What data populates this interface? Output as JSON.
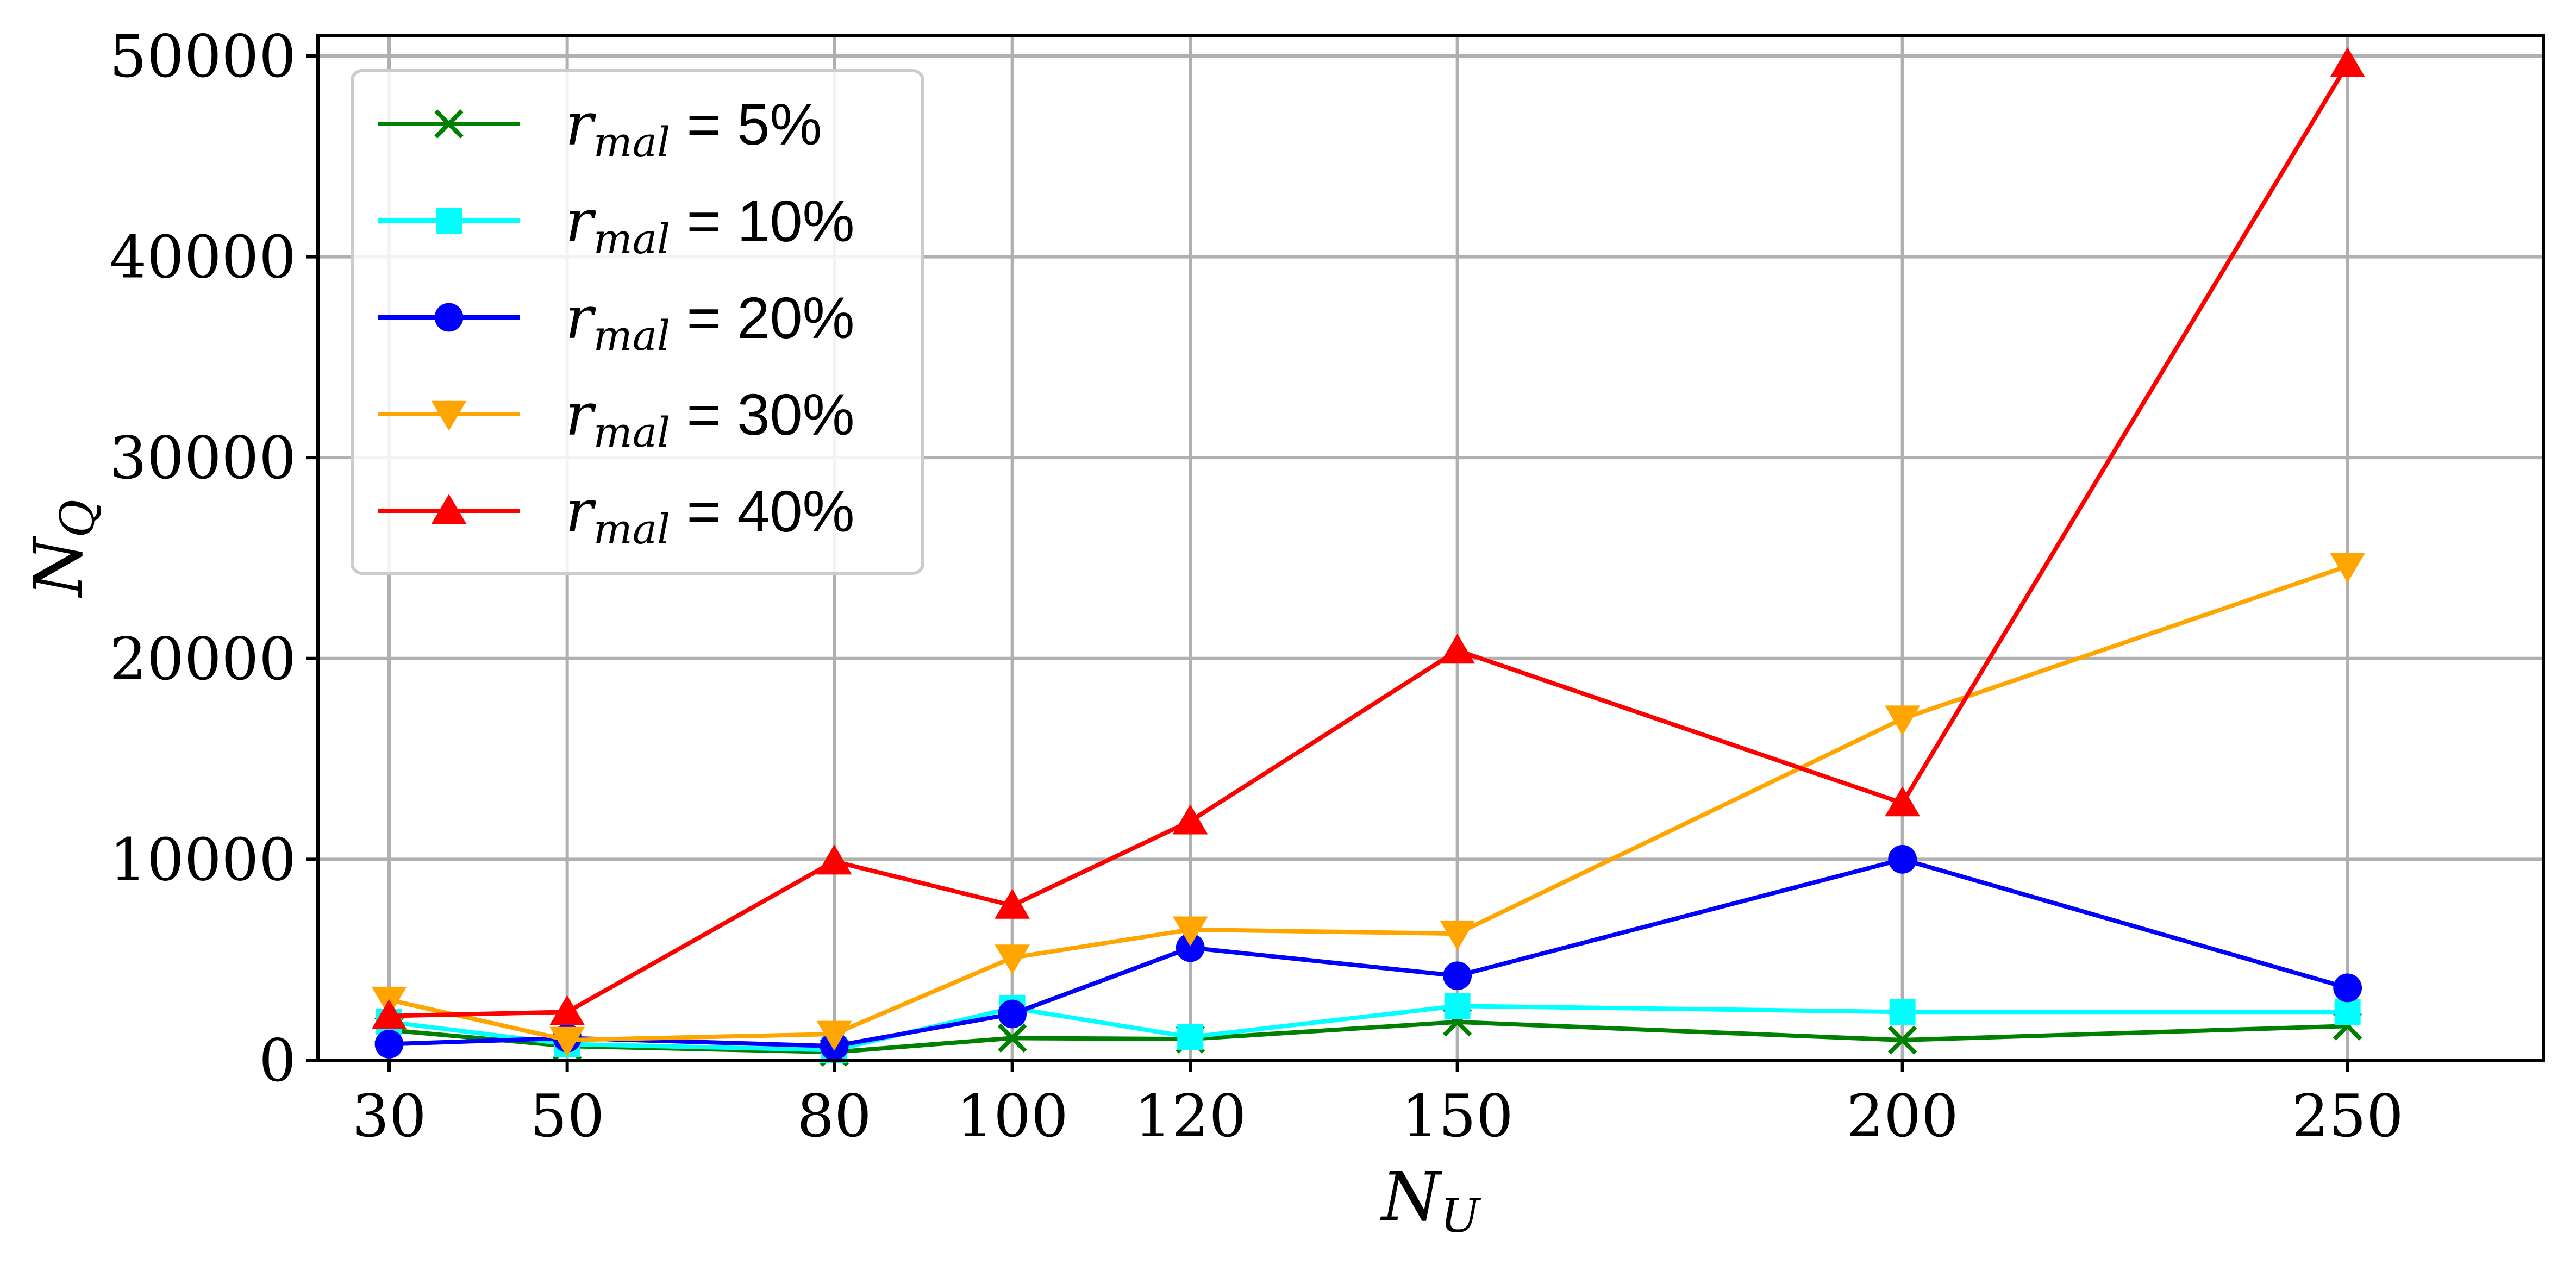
{
  "chart_data": {
    "type": "line",
    "xlabel": "N_U",
    "xlabel_main": "N",
    "xlabel_sub": "U",
    "ylabel": "N_Q",
    "ylabel_main": "N",
    "ylabel_sub": "Q",
    "xlim": [
      22,
      272
    ],
    "ylim": [
      0,
      51000
    ],
    "x": [
      30,
      50,
      80,
      100,
      120,
      150,
      200,
      250
    ],
    "x_tick_labels": [
      "30",
      "50",
      "80",
      "100",
      "120",
      "150",
      "200",
      "250"
    ],
    "y_ticks": [
      0,
      10000,
      20000,
      30000,
      40000,
      50000
    ],
    "y_tick_labels": [
      "0",
      "10000",
      "20000",
      "30000",
      "40000",
      "50000"
    ],
    "grid": true,
    "legend_position": "top-left",
    "legend_var_main": "r",
    "legend_var_sub": "mal",
    "series": [
      {
        "name": "r_mal = 5%",
        "legend_value": " = 5%",
        "color": "#008000",
        "marker": "x-icon",
        "values": [
          1500,
          700,
          400,
          1100,
          1050,
          1900,
          1000,
          1700
        ]
      },
      {
        "name": "r_mal = 10%",
        "legend_value": " = 10%",
        "color": "#00FFFF",
        "marker": "square-icon",
        "values": [
          1900,
          800,
          500,
          2600,
          1150,
          2700,
          2400,
          2400
        ]
      },
      {
        "name": "r_mal = 20%",
        "legend_value": " = 20%",
        "color": "#0000FF",
        "marker": "circle-icon",
        "values": [
          800,
          1100,
          700,
          2300,
          5600,
          4200,
          10000,
          3600
        ]
      },
      {
        "name": "r_mal = 30%",
        "legend_value": " = 30%",
        "color": "#FFA500",
        "marker": "triangle-down-icon",
        "values": [
          3000,
          1000,
          1300,
          5100,
          6500,
          6300,
          17000,
          24600
        ]
      },
      {
        "name": "r_mal = 40%",
        "legend_value": " = 40%",
        "color": "#FF0000",
        "marker": "triangle-up-icon",
        "values": [
          2200,
          2400,
          9900,
          7700,
          11900,
          20400,
          12800,
          49600
        ]
      }
    ]
  }
}
